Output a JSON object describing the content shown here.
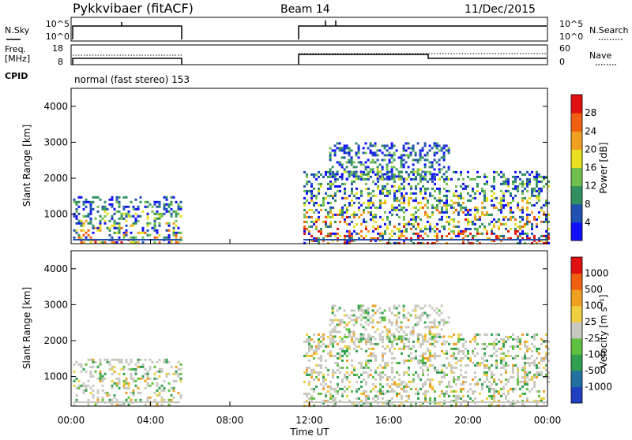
{
  "header": {
    "station": "Pykkvibaer (fitACF)",
    "beam": "Beam 14",
    "date": "11/Dec/2015"
  },
  "nsky_panel": {
    "left_label": "N.Sky",
    "right_label": "N.Search",
    "left_ticks": [
      "10^5",
      "10^0"
    ],
    "right_ticks": [
      "10^5",
      "10^0"
    ]
  },
  "freq_panel": {
    "left_label_1": "Freq.",
    "left_label_2": "[MHz]",
    "right_label": "Nave",
    "left_ticks": [
      "18",
      "8"
    ],
    "right_ticks": [
      "60",
      "0"
    ]
  },
  "cpid": {
    "label": "CPID",
    "mode": "normal (fast stereo) 153"
  },
  "chart_data": [
    {
      "type": "heatmap",
      "panel": "power",
      "ylabel": "Slant Range [km]",
      "y_ticks": [
        "1000",
        "2000",
        "3000",
        "4000"
      ],
      "ylim": [
        180,
        4500
      ],
      "colorbar_label": "Power [dB]",
      "colorbar_ticks": [
        "4",
        "8",
        "12",
        "16",
        "20",
        "24",
        "28"
      ],
      "colors": [
        "#1010ff",
        "#2050b0",
        "#309060",
        "#70c050",
        "#e8e020",
        "#f0a020",
        "#f06010",
        "#e01010"
      ],
      "regions": [
        {
          "t0": 0.1,
          "t1": 5.5,
          "r0": 200,
          "r1": 1500,
          "peak": 0.55
        },
        {
          "t0": 11.7,
          "t1": 24.0,
          "r0": 200,
          "r1": 2200,
          "peak": 0.8
        },
        {
          "t0": 13.0,
          "t1": 19.0,
          "r0": 2000,
          "r1": 3000,
          "peak": 0.2
        }
      ]
    },
    {
      "type": "heatmap",
      "panel": "velocity",
      "ylabel": "Slant Range [km]",
      "y_ticks": [
        "1000",
        "2000",
        "3000",
        "4000"
      ],
      "ylim": [
        180,
        4500
      ],
      "colorbar_label": "Velocity [m s⁻¹]",
      "colorbar_ticks": [
        "1000",
        "500",
        "100",
        "25",
        "-25",
        "-100",
        "-500",
        "-1000"
      ],
      "colors": [
        "#2040c0",
        "#2070a0",
        "#30a050",
        "#60c040",
        "#c8c8c0",
        "#f0d040",
        "#f0a020",
        "#f06010",
        "#e01010"
      ],
      "regions": [
        {
          "t0": 0.1,
          "t1": 5.5,
          "r0": 200,
          "r1": 1500
        },
        {
          "t0": 11.7,
          "t1": 24.0,
          "r0": 200,
          "r1": 2200
        },
        {
          "t0": 13.0,
          "t1": 19.0,
          "r0": 2000,
          "r1": 3000
        }
      ]
    }
  ],
  "x_axis": {
    "label": "Time UT",
    "ticks": [
      "00:00",
      "04:00",
      "08:00",
      "12:00",
      "16:00",
      "20:00",
      "00:00"
    ],
    "range_hours": [
      0,
      24
    ]
  },
  "data_gap": {
    "start_hours": 5.5,
    "end_hours": 11.7
  }
}
